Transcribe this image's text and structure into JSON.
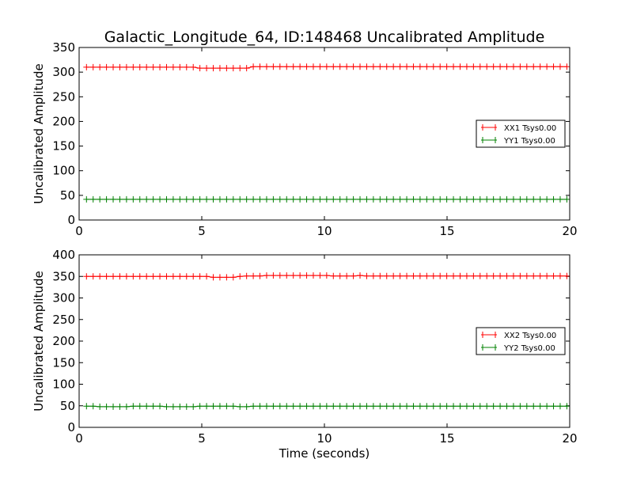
{
  "chart_data": [
    {
      "type": "line",
      "title": "Galactic_Longitude_64, ID:148468 Uncalibrated Amplitude",
      "xlabel": "",
      "ylabel": "Uncalibrated Amplitude",
      "xlim": [
        0,
        20
      ],
      "ylim": [
        0,
        350
      ],
      "xticks": [
        0,
        5,
        10,
        15,
        20
      ],
      "yticks": [
        0,
        50,
        100,
        150,
        200,
        250,
        300,
        350
      ],
      "legend_position": "center-right",
      "x_start": 0.3,
      "x_step": 0.272,
      "series": [
        {
          "name": "XX1 Tsys0.00",
          "color": "#ff0000",
          "values": [
            310,
            310,
            310,
            310,
            310,
            310,
            310,
            310,
            310,
            310,
            310,
            310,
            310,
            310,
            310,
            310,
            310,
            308,
            308,
            308,
            308,
            308,
            308,
            308,
            308,
            311,
            311,
            311,
            311,
            311,
            311,
            311,
            311,
            311,
            311,
            311,
            311,
            311,
            311,
            311,
            311,
            311,
            311,
            311,
            311,
            311,
            311,
            311,
            311,
            311,
            311,
            311,
            311,
            311,
            311,
            311,
            311,
            311,
            311,
            311,
            311,
            311,
            311,
            311,
            311,
            311,
            311,
            311,
            311,
            311,
            311,
            311,
            311
          ]
        },
        {
          "name": "YY1 Tsys0.00",
          "color": "#008000",
          "values": [
            42,
            42,
            42,
            42,
            42,
            42,
            42,
            42,
            42,
            42,
            42,
            42,
            42,
            42,
            42,
            42,
            42,
            42,
            42,
            42,
            42,
            42,
            42,
            42,
            42,
            42,
            42,
            42,
            42,
            42,
            42,
            42,
            42,
            42,
            42,
            42,
            42,
            42,
            42,
            42,
            42,
            42,
            42,
            42,
            42,
            42,
            42,
            42,
            42,
            42,
            42,
            42,
            42,
            42,
            42,
            42,
            42,
            42,
            42,
            42,
            42,
            42,
            42,
            42,
            42,
            42,
            42,
            42,
            42,
            42,
            42,
            42,
            42
          ]
        }
      ]
    },
    {
      "type": "line",
      "title": "",
      "xlabel": "Time (seconds)",
      "ylabel": "Uncalibrated Amplitude",
      "xlim": [
        0,
        20
      ],
      "ylim": [
        0,
        400
      ],
      "xticks": [
        0,
        5,
        10,
        15,
        20
      ],
      "yticks": [
        0,
        50,
        100,
        150,
        200,
        250,
        300,
        350,
        400
      ],
      "legend_position": "center-right",
      "x_start": 0.3,
      "x_step": 0.272,
      "series": [
        {
          "name": "XX2 Tsys0.00",
          "color": "#ff0000",
          "values": [
            350,
            350,
            350,
            350,
            350,
            350,
            350,
            350,
            350,
            350,
            350,
            350,
            350,
            350,
            350,
            350,
            350,
            350,
            350,
            348,
            348,
            348,
            348,
            350,
            351,
            351,
            351,
            352,
            352,
            352,
            352,
            352,
            352,
            352,
            352,
            352,
            352,
            351,
            351,
            351,
            351,
            352,
            351,
            351,
            351,
            351,
            351,
            351,
            351,
            351,
            351,
            351,
            351,
            351,
            351,
            351,
            351,
            351,
            351,
            351,
            351,
            351,
            351,
            351,
            351,
            351,
            351,
            351,
            351,
            351,
            351,
            351,
            351
          ]
        },
        {
          "name": "YY2 Tsys0.00",
          "color": "#008000",
          "values": [
            49,
            49,
            48,
            48,
            48,
            48,
            48,
            49,
            49,
            49,
            49,
            49,
            48,
            48,
            48,
            48,
            48,
            49,
            49,
            49,
            49,
            49,
            49,
            48,
            48,
            49,
            49,
            49,
            49,
            49,
            49,
            49,
            49,
            49,
            49,
            49,
            49,
            49,
            49,
            49,
            49,
            49,
            49,
            49,
            49,
            49,
            49,
            49,
            49,
            49,
            49,
            49,
            49,
            49,
            49,
            49,
            49,
            49,
            49,
            49,
            49,
            49,
            49,
            49,
            49,
            49,
            49,
            49,
            49,
            49,
            49,
            49,
            49
          ]
        }
      ]
    }
  ]
}
